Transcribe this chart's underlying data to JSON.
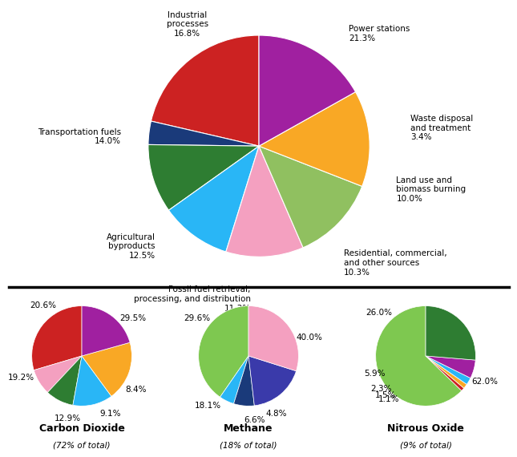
{
  "main_pie": {
    "values": [
      21.3,
      3.4,
      10.0,
      10.3,
      11.3,
      12.5,
      14.0,
      16.8
    ],
    "colors": [
      "#cc2222",
      "#1a3a7a",
      "#2e7d32",
      "#29b6f6",
      "#f4a0c0",
      "#90c060",
      "#f9a825",
      "#a020a0"
    ],
    "labels": [
      "Power stations\n21.3%",
      "Waste disposal\nand treatment\n3.4%",
      "Land use and\nbiomass burning\n10.0%",
      "Residential, commercial,\nand other sources\n10.3%",
      "Fossil fuel retrieval,\nprocessing, and distribution\n11.3%",
      "Agricultural\nbyproducts\n12.5%",
      "Transportation fuels\n14.0%",
      "Industrial\nprocesses\n16.8%"
    ],
    "label_ha": [
      "left",
      "left",
      "left",
      "left",
      "right",
      "right",
      "right",
      "center"
    ],
    "startangle": 90
  },
  "co2_pie": {
    "label_text": [
      "29.5%",
      "8.4%",
      "9.1%",
      "12.9%",
      "19.2%",
      "20.6%"
    ],
    "values": [
      29.5,
      8.4,
      9.1,
      12.9,
      19.2,
      20.6
    ],
    "colors": [
      "#cc2222",
      "#f4a0c0",
      "#2e7d32",
      "#29b6f6",
      "#f9a825",
      "#a020a0"
    ],
    "title": "Carbon Dioxide",
    "subtitle": "(72% of total)",
    "startangle": 90
  },
  "ch4_pie": {
    "label_text": [
      "40.0%",
      "4.8%",
      "6.6%",
      "18.1%",
      "29.6%"
    ],
    "values": [
      40.0,
      4.8,
      6.6,
      18.1,
      29.6
    ],
    "colors": [
      "#7ec850",
      "#29b6f6",
      "#1a3a7a",
      "#3a3aaa",
      "#f4a0c0"
    ],
    "title": "Methane",
    "subtitle": "(18% of total)",
    "startangle": 90
  },
  "n2o_pie": {
    "label_text": [
      "62.0%",
      "1.1%",
      "1.5%",
      "2.3%",
      "5.9%",
      "26.0%"
    ],
    "values": [
      62.0,
      1.1,
      1.5,
      2.3,
      5.9,
      26.0
    ],
    "colors": [
      "#7ec850",
      "#cc2222",
      "#f9a825",
      "#29b6f6",
      "#a020a0",
      "#2e7d32"
    ],
    "title": "Nitrous Oxide",
    "subtitle": "(9% of total)",
    "startangle": 90
  },
  "background_color": "#ffffff"
}
